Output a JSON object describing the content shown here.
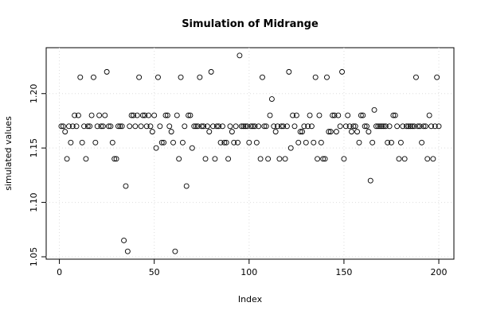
{
  "chart_data": {
    "type": "scatter",
    "title": "Simulation of Midrange",
    "x_label": "Index",
    "y_label": "simulated values",
    "x": [
      1,
      2,
      3,
      4,
      5,
      6,
      7,
      8,
      9,
      10,
      11,
      12,
      13,
      14,
      15,
      16,
      17,
      18,
      19,
      20,
      21,
      22,
      23,
      24,
      25,
      26,
      27,
      28,
      29,
      30,
      31,
      32,
      33,
      34,
      35,
      36,
      37,
      38,
      39,
      40,
      41,
      42,
      43,
      44,
      45,
      46,
      47,
      48,
      49,
      50,
      51,
      52,
      53,
      54,
      55,
      56,
      57,
      58,
      59,
      60,
      61,
      62,
      63,
      64,
      65,
      66,
      67,
      68,
      69,
      70,
      71,
      72,
      73,
      74,
      75,
      76,
      77,
      78,
      79,
      80,
      81,
      82,
      83,
      84,
      85,
      86,
      87,
      88,
      89,
      90,
      91,
      92,
      93,
      94,
      95,
      96,
      97,
      98,
      99,
      100,
      101,
      102,
      103,
      104,
      105,
      106,
      107,
      108,
      109,
      110,
      111,
      112,
      113,
      114,
      115,
      116,
      117,
      118,
      119,
      120,
      121,
      122,
      123,
      124,
      125,
      126,
      127,
      128,
      129,
      130,
      131,
      132,
      133,
      134,
      135,
      136,
      137,
      138,
      139,
      140,
      141,
      142,
      143,
      144,
      145,
      146,
      147,
      148,
      149,
      150,
      151,
      152,
      153,
      154,
      155,
      156,
      157,
      158,
      159,
      160,
      161,
      162,
      163,
      164,
      165,
      166,
      167,
      168,
      169,
      170,
      171,
      172,
      173,
      174,
      175,
      176,
      177,
      178,
      179,
      180,
      181,
      182,
      183,
      184,
      185,
      186,
      187,
      188,
      189,
      190,
      191,
      192,
      193,
      194,
      195,
      196,
      197,
      198,
      199,
      200
    ],
    "values": [
      1.17,
      1.17,
      1.165,
      1.14,
      1.17,
      1.155,
      1.17,
      1.18,
      1.17,
      1.18,
      1.215,
      1.155,
      1.17,
      1.14,
      1.17,
      1.17,
      1.18,
      1.215,
      1.155,
      1.17,
      1.18,
      1.17,
      1.17,
      1.18,
      1.22,
      1.17,
      1.17,
      1.155,
      1.14,
      1.14,
      1.17,
      1.17,
      1.17,
      1.065,
      1.115,
      1.055,
      1.17,
      1.18,
      1.18,
      1.17,
      1.18,
      1.215,
      1.17,
      1.18,
      1.18,
      1.17,
      1.18,
      1.17,
      1.165,
      1.18,
      1.15,
      1.215,
      1.17,
      1.155,
      1.155,
      1.18,
      1.18,
      1.17,
      1.165,
      1.155,
      1.055,
      1.18,
      1.14,
      1.215,
      1.155,
      1.17,
      1.115,
      1.18,
      1.18,
      1.15,
      1.17,
      1.17,
      1.17,
      1.215,
      1.17,
      1.17,
      1.14,
      1.17,
      1.165,
      1.22,
      1.17,
      1.14,
      1.17,
      1.17,
      1.155,
      1.17,
      1.155,
      1.155,
      1.14,
      1.17,
      1.165,
      1.155,
      1.17,
      1.155,
      1.235,
      1.17,
      1.17,
      1.17,
      1.17,
      1.155,
      1.17,
      1.17,
      1.17,
      1.155,
      1.17,
      1.14,
      1.215,
      1.17,
      1.17,
      1.14,
      1.18,
      1.195,
      1.17,
      1.165,
      1.17,
      1.14,
      1.17,
      1.17,
      1.14,
      1.17,
      1.22,
      1.15,
      1.18,
      1.17,
      1.18,
      1.155,
      1.165,
      1.165,
      1.17,
      1.155,
      1.17,
      1.18,
      1.17,
      1.155,
      1.215,
      1.14,
      1.18,
      1.155,
      1.14,
      1.14,
      1.215,
      1.165,
      1.165,
      1.18,
      1.18,
      1.165,
      1.18,
      1.17,
      1.22,
      1.14,
      1.17,
      1.18,
      1.17,
      1.165,
      1.17,
      1.17,
      1.165,
      1.155,
      1.18,
      1.18,
      1.17,
      1.17,
      1.165,
      1.12,
      1.155,
      1.185,
      1.17,
      1.17,
      1.17,
      1.17,
      1.17,
      1.17,
      1.155,
      1.17,
      1.155,
      1.18,
      1.18,
      1.17,
      1.14,
      1.155,
      1.17,
      1.14,
      1.17,
      1.17,
      1.17,
      1.17,
      1.17,
      1.215,
      1.17,
      1.17,
      1.155,
      1.17,
      1.17,
      1.14,
      1.18,
      1.17,
      1.14,
      1.17,
      1.215,
      1.17
    ],
    "color": "#000000",
    "xlim": [
      -6.96,
      207.96
    ],
    "ylim": [
      1.0478,
      1.2422
    ],
    "xticks": [
      0,
      50,
      100,
      150,
      200
    ],
    "yticks": [
      1.05,
      {
        "value": 1.1,
        "label": "1.10"
      },
      1.15,
      {
        "value": 1.2,
        "label": "1.20"
      }
    ],
    "grid": true
  }
}
